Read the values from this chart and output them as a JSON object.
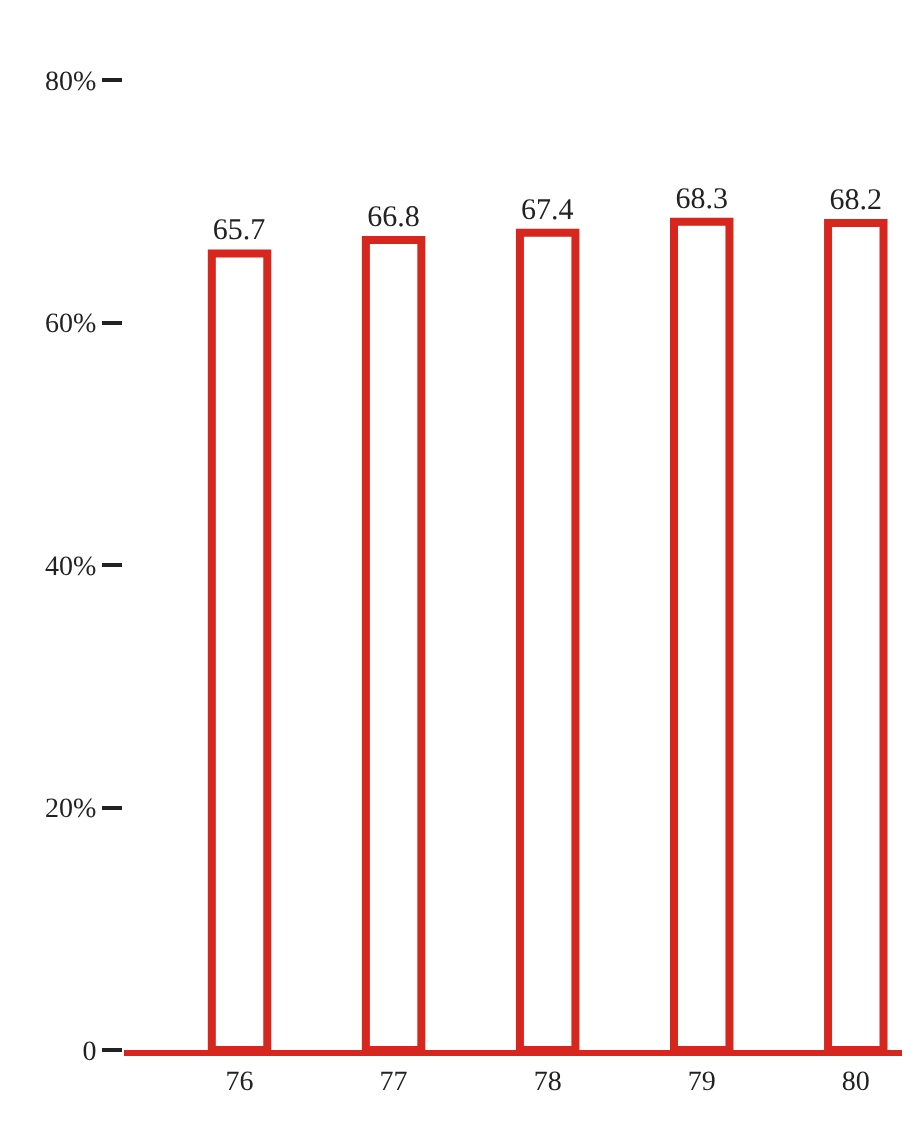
{
  "chart_data": {
    "type": "bar",
    "categories": [
      "76",
      "77",
      "78",
      "79",
      "80"
    ],
    "values": [
      65.7,
      66.8,
      67.4,
      68.3,
      68.2
    ],
    "color": "#d7261e",
    "ylim": [
      0,
      80
    ],
    "yticks": [
      0,
      {
        "value": 20,
        "label": "20%"
      },
      {
        "value": 40,
        "label": "40%"
      },
      {
        "value": 60,
        "label": "60%"
      },
      {
        "value": 80,
        "label": "80%"
      }
    ],
    "data_labels": true,
    "grid": false,
    "legend": false
  }
}
